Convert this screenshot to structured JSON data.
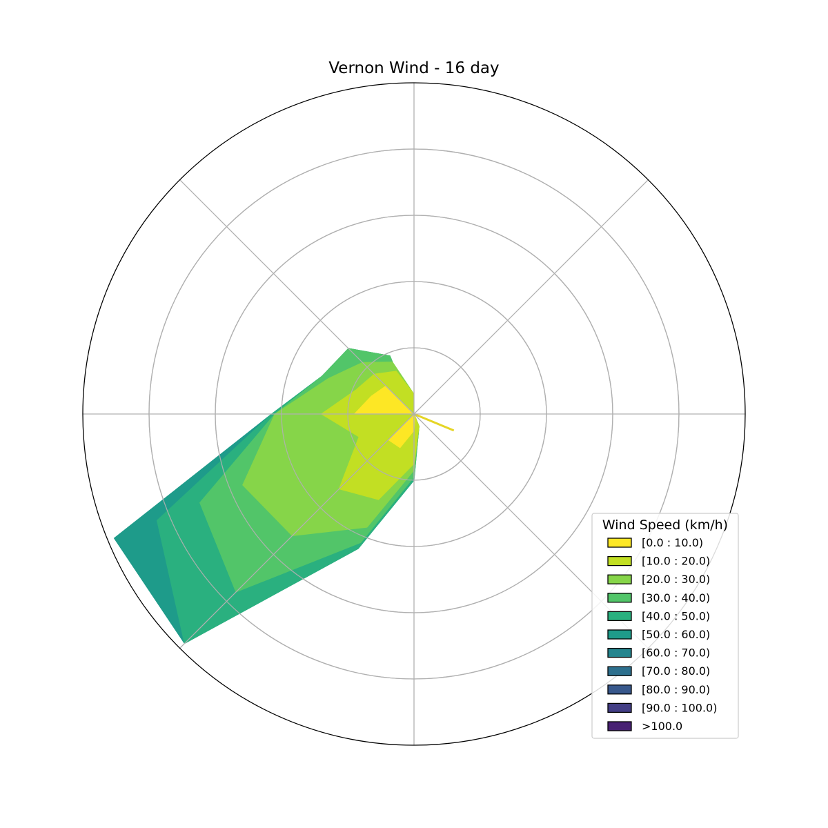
{
  "chart_data": {
    "type": "windrose",
    "title": "Vernon Wind - 16 day",
    "directions_deg": [
      0,
      22.5,
      45,
      67.5,
      90,
      112.5,
      135,
      157.5,
      180,
      202.5,
      225,
      247.5,
      270,
      292.5,
      315,
      337.5
    ],
    "radial_rings": 5,
    "radial_max_rings": 5,
    "grid": true,
    "legend": {
      "title": "Wind Speed (km/h)",
      "placement": "lower-right",
      "entries": [
        {
          "label": "[0.0 : 10.0)",
          "color": "#fde725"
        },
        {
          "label": "[10.0 : 20.0)",
          "color": "#c2df23"
        },
        {
          "label": "[20.0 : 30.0)",
          "color": "#86d549"
        },
        {
          "label": "[30.0 : 40.0)",
          "color": "#52c569"
        },
        {
          "label": "[40.0 : 50.0)",
          "color": "#2ab07f"
        },
        {
          "label": "[50.0 : 60.0)",
          "color": "#1e9b8a"
        },
        {
          "label": "[60.0 : 70.0)",
          "color": "#25858e"
        },
        {
          "label": "[70.0 : 80.0)",
          "color": "#2d708e"
        },
        {
          "label": "[80.0 : 90.0)",
          "color": "#38588c"
        },
        {
          "label": "[90.0 : 100.0)",
          "color": "#433e85"
        },
        {
          "label": ">100.0",
          "color": "#482173"
        }
      ]
    },
    "series": [
      {
        "values": [
          0.0,
          0.0,
          0.0,
          0.0,
          0.0,
          0.7,
          0.0,
          0.0,
          0.0,
          0.0,
          0.0,
          0.0,
          0.0,
          0.0,
          0.0,
          0.0
        ],
        "color": "#fde725"
      },
      {
        "values": [
          0.0,
          0.0,
          0.0,
          0.0,
          0.0,
          0.7,
          0.0,
          0.0,
          0.0,
          0.0,
          0.0,
          0.0,
          0.0,
          0.0,
          0.0,
          0.0
        ],
        "color": "#fde725"
      },
      {
        "values": [
          0.31,
          0.0,
          0.0,
          0.0,
          0.0,
          0.7,
          0.0,
          0.0,
          0.0,
          0.0,
          0.0,
          0.0,
          0.0,
          0.0,
          0.0,
          0.0
        ],
        "color": "#fde725"
      },
      {
        "values": [
          0.31,
          0.0,
          0.0,
          0.0,
          0.0,
          0.7,
          0.0,
          0.26,
          0.2,
          0.0,
          0.0,
          0.0,
          0.0,
          0.0,
          0.0,
          0.0
        ],
        "color": "#fde725"
      },
      {
        "values": [
          0.31,
          0.0,
          0.0,
          0.0,
          0.0,
          0.7,
          0.0,
          0.26,
          0.2,
          0.0,
          0.0,
          0.0,
          0.0,
          0.0,
          0.0,
          0.0
        ],
        "color": "#fde725"
      }
    ]
  },
  "rose_layers": [
    {
      "color": "#1e9b8a",
      "r": [
        0.0,
        0.0,
        0.0,
        0.0,
        0.0,
        0.0,
        0.0,
        0.2,
        1.0,
        2.2,
        4.9,
        4.9,
        2.15,
        1.5,
        1.4,
        0.95
      ]
    },
    {
      "color": "#2ab07f",
      "r": [
        0.0,
        0.0,
        0.0,
        0.0,
        0.0,
        0.0,
        0.0,
        0.2,
        1.0,
        2.2,
        4.9,
        4.2,
        2.15,
        1.5,
        1.4,
        0.95
      ]
    },
    {
      "color": "#52c569",
      "r": [
        0.0,
        0.0,
        0.0,
        0.0,
        0.0,
        0.0,
        0.0,
        0.2,
        0.95,
        2.1,
        3.8,
        3.5,
        2.1,
        1.5,
        1.4,
        0.95
      ]
    },
    {
      "color": "#86d549",
      "r": [
        0.3,
        0.0,
        0.0,
        0.0,
        0.0,
        0.0,
        0.0,
        0.2,
        0.85,
        1.85,
        2.6,
        2.8,
        2.1,
        1.4,
        1.1,
        0.85
      ]
    },
    {
      "color": "#c2df23",
      "r": [
        0.3,
        0.0,
        0.0,
        0.0,
        0.0,
        0.0,
        0.0,
        0.2,
        0.75,
        1.4,
        1.6,
        0.9,
        1.4,
        0.95,
        0.85,
        0.7
      ]
    },
    {
      "color": "#fde725",
      "r": [
        0.0,
        0.0,
        0.0,
        0.0,
        0.0,
        0.0,
        0.0,
        0.05,
        0.25,
        0.55,
        0.55,
        0.0,
        0.9,
        0.7,
        0.6,
        0.0
      ]
    }
  ],
  "spike": {
    "color": "#e5d526",
    "angle_deg": 112.5,
    "r": 0.65
  }
}
